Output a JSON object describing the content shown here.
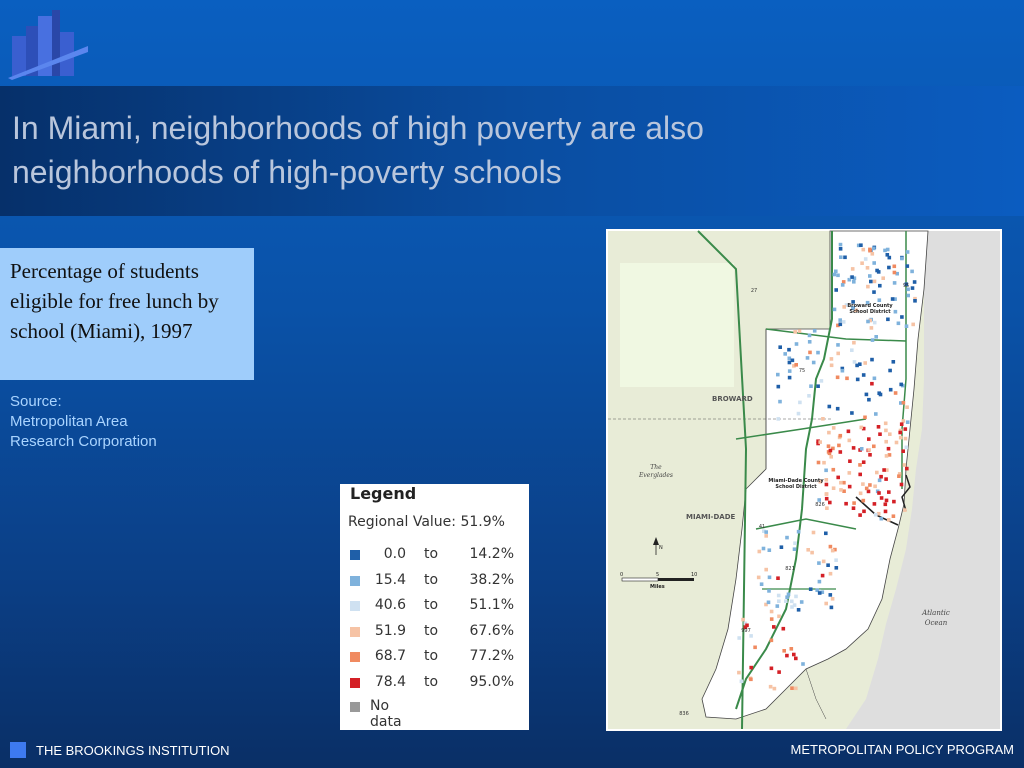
{
  "slide": {
    "title_line1": "In Miami, neighborhoods of high poverty are also",
    "title_line2": "neighborhoods of high-poverty schools",
    "caption": "Percentage of students eligible for free lunch by school (Miami), 1997",
    "source_label": "Source:",
    "source_line1": "Metropolitan Area",
    "source_line2": "Research Corporation"
  },
  "legend": {
    "title": "Legend",
    "regional_value": "Regional Value: 51.9%",
    "to_word": "to",
    "no_data": "No data",
    "ranges": [
      {
        "low": "0.0",
        "high": "14.2%",
        "color": "#1f5fa8"
      },
      {
        "low": "15.4",
        "high": "38.2%",
        "color": "#7fb2dc"
      },
      {
        "low": "40.6",
        "high": "51.1%",
        "color": "#cfe1f1"
      },
      {
        "low": "51.9",
        "high": "67.6%",
        "color": "#f6c3a5"
      },
      {
        "low": "68.7",
        "high": "77.2%",
        "color": "#f08a60"
      },
      {
        "low": "78.4",
        "high": "95.0%",
        "color": "#d42026"
      }
    ],
    "no_data_color": "#999999"
  },
  "map": {
    "labels": {
      "broward": "BROWARD",
      "miami_dade": "MIAMI-DADE",
      "everglades_1": "The",
      "everglades_2": "Everglades",
      "broward_district_1": "Broward County",
      "broward_district_2": "School District",
      "miami_district_1": "Miami-Dade County",
      "miami_district_2": "School District",
      "atlantic_1": "Atlantic",
      "atlantic_2": "Ocean",
      "north": "N",
      "miles": "Miles",
      "scale_0": "0",
      "scale_5": "5",
      "scale_10": "10"
    },
    "shields": [
      "27",
      "95",
      "75",
      "826",
      "41",
      "821",
      "997",
      "836"
    ]
  },
  "footer": {
    "left": "THE BROOKINGS INSTITUTION",
    "right": "METROPOLITAN POLICY PROGRAM"
  }
}
